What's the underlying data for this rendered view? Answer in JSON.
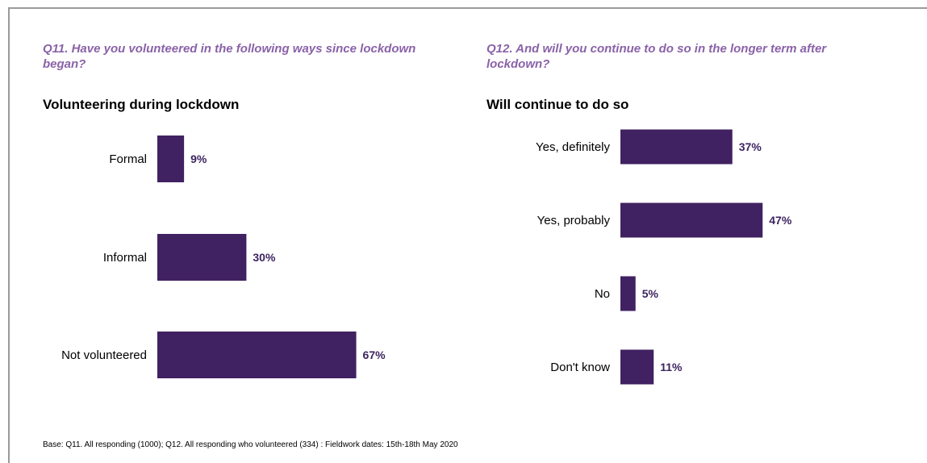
{
  "left_panel": {
    "question": "Q11. Have you volunteered in the following ways since lockdown began?",
    "title": "Volunteering during lockdown"
  },
  "right_panel": {
    "question": "Q12. And will you continue to do so in the longer term after lockdown?",
    "title": "Will continue to do so"
  },
  "footnote": "Base: Q11. All responding (1000); Q12. All responding who volunteered (334) : Fieldwork dates: 15th-18th May 2020",
  "colors": {
    "bar": "#402161",
    "question": "#8a62a8",
    "value_label": "#3d2460"
  },
  "chart_data": [
    {
      "type": "bar",
      "orientation": "horizontal",
      "title": "Volunteering during lockdown",
      "categories": [
        "Formal",
        "Informal",
        "Not volunteered"
      ],
      "values": [
        9,
        30,
        67
      ],
      "value_labels": [
        "9%",
        "30%",
        "67%"
      ],
      "unit": "%",
      "xlim": [
        0,
        100
      ],
      "grid": false
    },
    {
      "type": "bar",
      "orientation": "horizontal",
      "title": "Will continue to do so",
      "categories": [
        "Yes, definitely",
        "Yes, probably",
        "No",
        "Don't know"
      ],
      "values": [
        37,
        47,
        5,
        11
      ],
      "value_labels": [
        "37%",
        "47%",
        "5%",
        "11%"
      ],
      "unit": "%",
      "xlim": [
        0,
        100
      ],
      "grid": false
    }
  ]
}
